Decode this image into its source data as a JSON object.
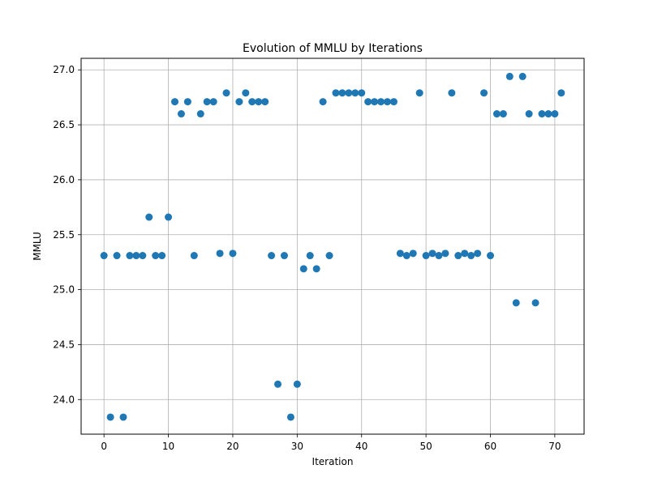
{
  "chart_data": {
    "type": "scatter",
    "title": "Evolution of MMLU by Iterations",
    "xlabel": "Iteration",
    "ylabel": "MMLU",
    "xlim": [
      -3.55,
      74.55
    ],
    "ylim": [
      23.685,
      27.105
    ],
    "xticks": [
      0,
      10,
      20,
      30,
      40,
      50,
      60,
      70
    ],
    "yticks": [
      24.0,
      24.5,
      25.0,
      25.5,
      26.0,
      26.5,
      27.0
    ],
    "grid": true,
    "marker_color": "#1f77b4",
    "x": [
      0,
      1,
      2,
      3,
      4,
      5,
      6,
      7,
      8,
      9,
      10,
      11,
      12,
      13,
      14,
      15,
      16,
      17,
      18,
      19,
      20,
      21,
      22,
      23,
      24,
      25,
      26,
      27,
      28,
      29,
      30,
      31,
      32,
      33,
      34,
      35,
      36,
      37,
      38,
      39,
      40,
      41,
      42,
      43,
      44,
      45,
      46,
      47,
      48,
      49,
      50,
      51,
      52,
      53,
      54,
      55,
      56,
      57,
      58,
      59,
      60,
      61,
      62,
      63,
      64,
      65,
      66,
      67,
      68,
      69,
      70,
      71
    ],
    "y": [
      25.31,
      23.84,
      25.31,
      23.84,
      25.31,
      25.31,
      25.31,
      25.66,
      25.31,
      25.31,
      25.66,
      26.71,
      26.6,
      26.71,
      25.31,
      26.6,
      26.71,
      26.71,
      25.33,
      26.79,
      25.33,
      26.71,
      26.79,
      26.71,
      26.71,
      26.71,
      25.31,
      24.14,
      25.31,
      23.84,
      24.14,
      25.19,
      25.31,
      25.19,
      26.71,
      25.31,
      26.79,
      26.79,
      26.79,
      26.79,
      26.79,
      26.71,
      26.71,
      26.71,
      26.71,
      26.71,
      25.33,
      25.31,
      25.33,
      26.79,
      25.31,
      25.33,
      25.31,
      25.33,
      26.79,
      25.31,
      25.33,
      25.31,
      25.33,
      26.79,
      25.31,
      26.6,
      26.6,
      26.94,
      24.88,
      26.94,
      26.6,
      24.88,
      26.6,
      26.6,
      26.6,
      26.79
    ]
  }
}
